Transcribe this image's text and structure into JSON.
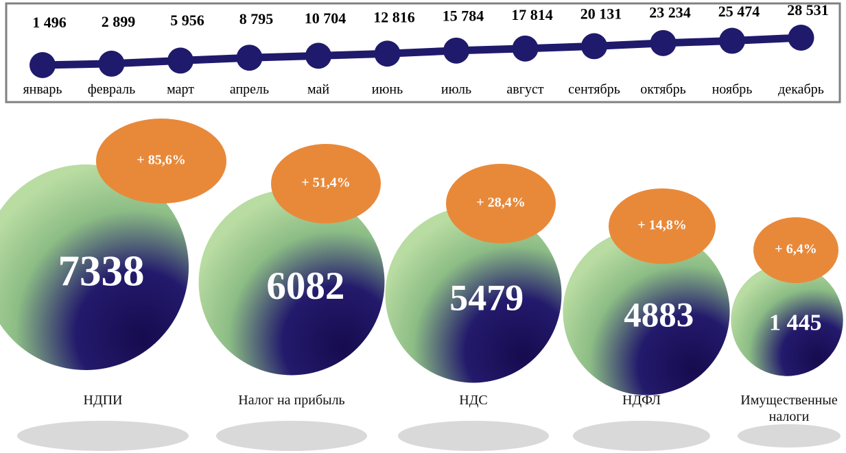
{
  "chart_data": [
    {
      "type": "line",
      "categories": [
        "январь",
        "февраль",
        "март",
        "апрель",
        "май",
        "июнь",
        "июль",
        "август",
        "сентябрь",
        "октябрь",
        "ноябрь",
        "декабрь"
      ],
      "values": [
        1496,
        2899,
        5956,
        8795,
        10704,
        12816,
        15784,
        17814,
        20131,
        23234,
        25474,
        28531
      ],
      "value_labels": [
        "1 496",
        "2 899",
        "5 956",
        "8 795",
        "10 704",
        "12 816",
        "15 784",
        "17 814",
        "20 131",
        "23 234",
        "25 474",
        "28 531"
      ],
      "color": "#1f1a6b"
    },
    {
      "type": "bubble",
      "categories": [
        "НДПИ",
        "Налог на прибыль",
        "НДС",
        "НДФЛ",
        "Имущественные налоги"
      ],
      "values": [
        7338,
        6082,
        5479,
        4883,
        1445
      ],
      "value_labels": [
        "7338",
        "6082",
        "5479",
        "4883",
        "1 445"
      ],
      "annotations": [
        "+ 85,6%",
        "+ 51,4%",
        "+ 28,4%",
        "+ 14,8%",
        "+ 6,4%"
      ],
      "color": "#e8893a"
    }
  ]
}
